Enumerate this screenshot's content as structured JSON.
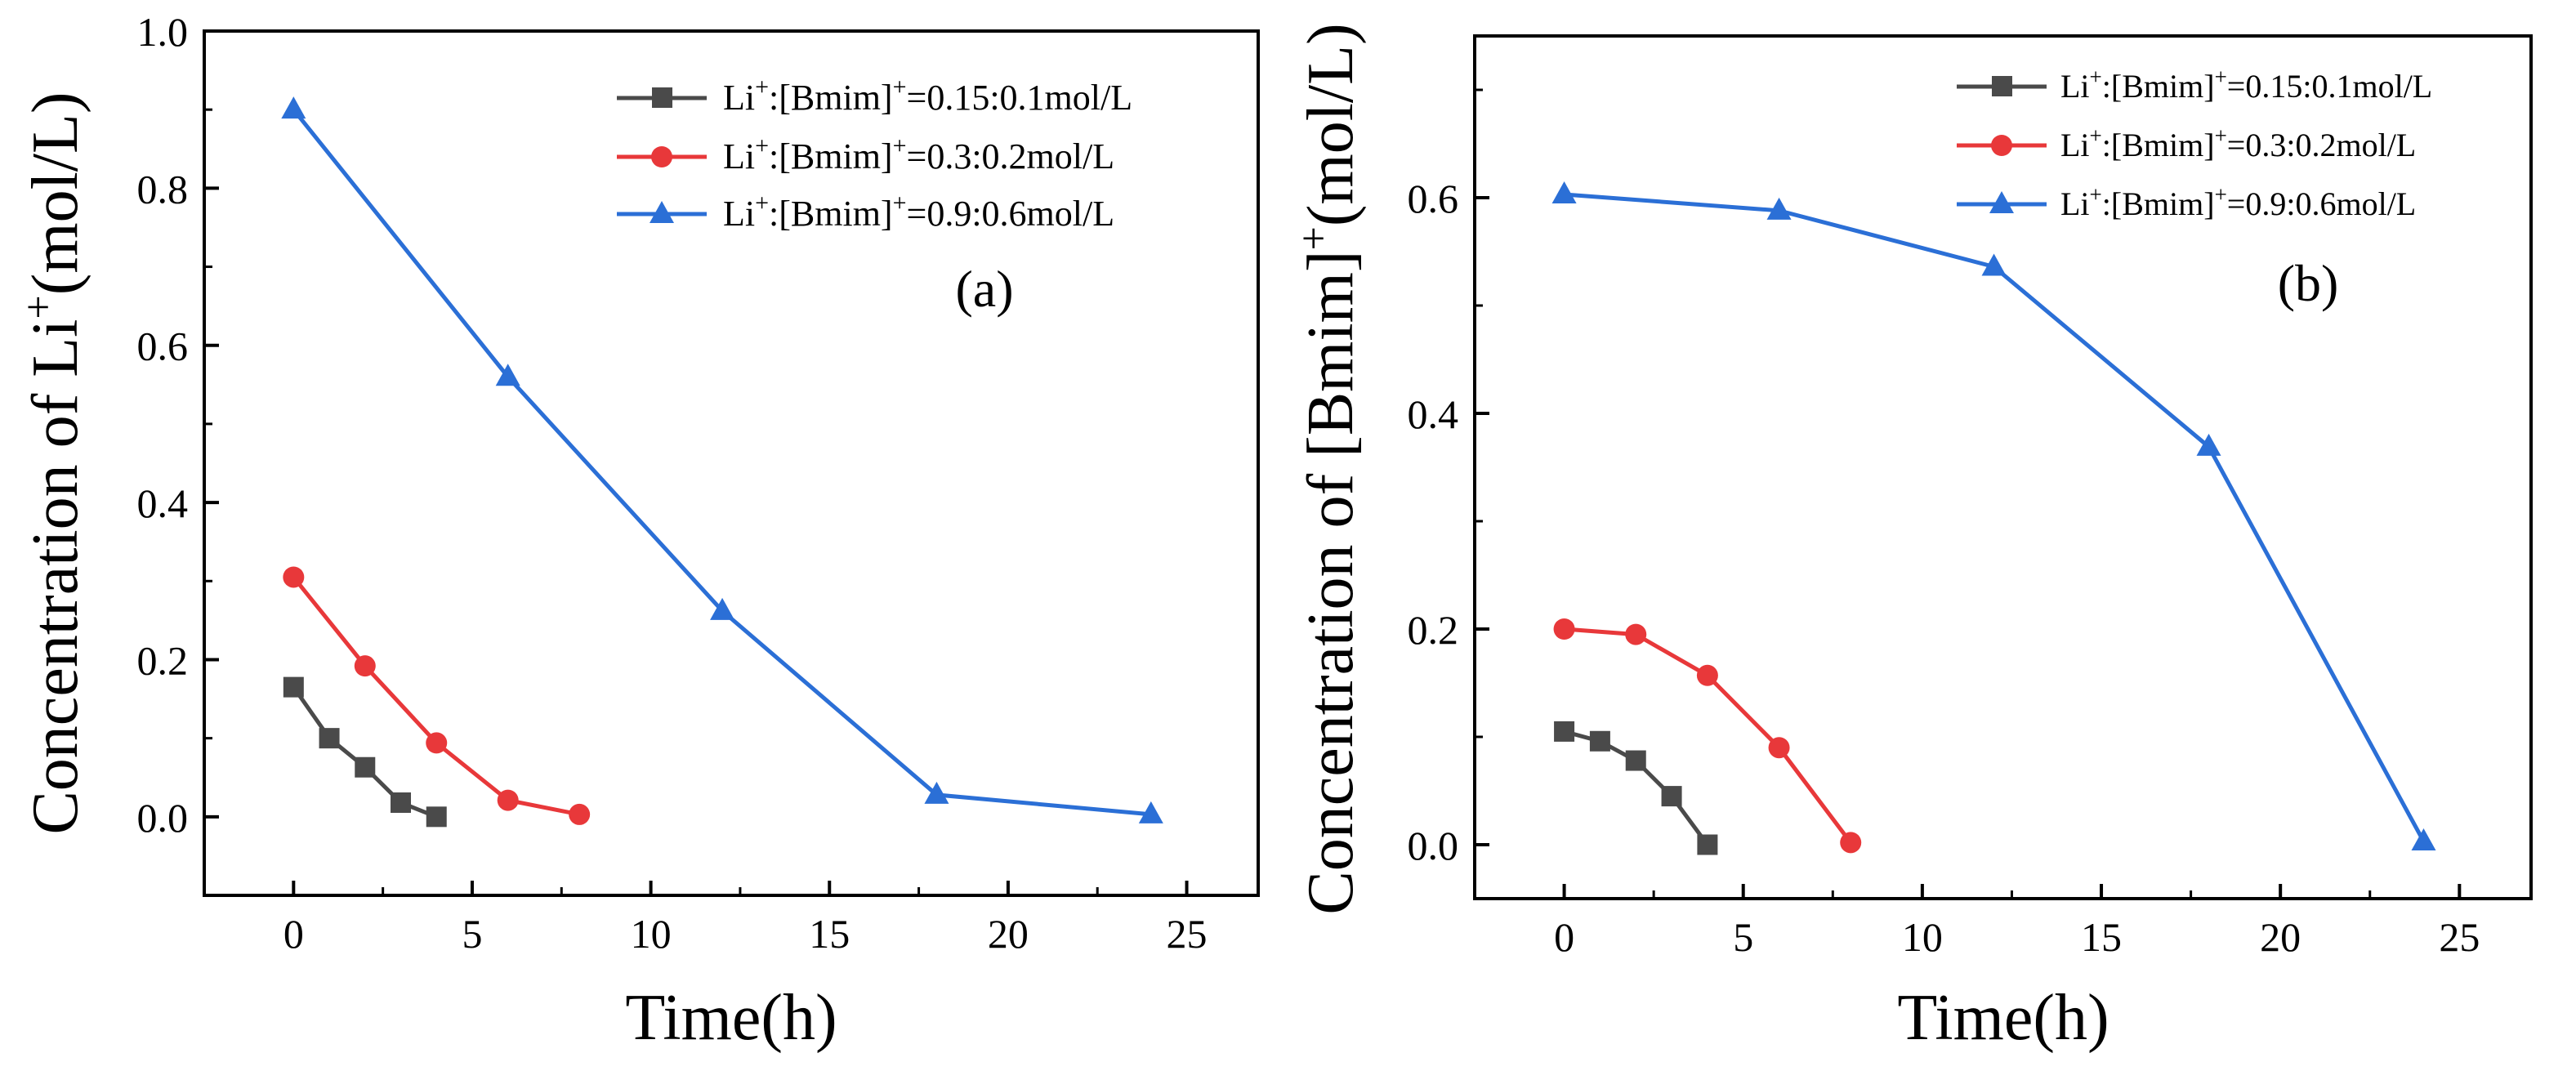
{
  "colors": {
    "series1": "#4a4a4a",
    "series2": "#e8383a",
    "series3": "#2b6fd6",
    "axis": "#000000"
  },
  "chart_data": [
    {
      "id": "a",
      "type": "line",
      "panel_label": "(a)",
      "xlabel": "Time(h)",
      "ylabel": "Concentration of Li+(mol/L)",
      "ylabel_parts": {
        "prefix": "Concentration of Li",
        "sup": "+",
        "suffix": "(mol/L)"
      },
      "xlim": [
        -2.5,
        27
      ],
      "ylim": [
        -0.1,
        1.0
      ],
      "xticks": [
        0,
        5,
        10,
        15,
        20,
        25
      ],
      "xtick_labels": [
        "0",
        "5",
        "10",
        "15",
        "20",
        "25"
      ],
      "yticks": [
        0.0,
        0.2,
        0.4,
        0.6,
        0.8,
        1.0
      ],
      "ytick_labels": [
        "0.0",
        "0.2",
        "0.4",
        "0.6",
        "0.8",
        "1.0"
      ],
      "legend_position": "top-right",
      "series": [
        {
          "name": "Li+:[Bmim]+=0.15:0.1mol/L",
          "legend": {
            "a": "Li",
            "b": "+",
            "c": ":[Bmim]",
            "d": "+",
            "e": "=0.15:0.1mol/L"
          },
          "marker": "square",
          "x": [
            0,
            1,
            2,
            3,
            4
          ],
          "y": [
            0.165,
            0.1,
            0.063,
            0.018,
            0.0
          ]
        },
        {
          "name": "Li+:[Bmim]+=0.3:0.2mol/L",
          "legend": {
            "a": "Li",
            "b": "+",
            "c": ":[Bmim]",
            "d": "+",
            "e": "=0.3:0.2mol/L"
          },
          "marker": "circle",
          "x": [
            0,
            2,
            4,
            6,
            8
          ],
          "y": [
            0.305,
            0.192,
            0.094,
            0.021,
            0.003
          ]
        },
        {
          "name": "Li+:[Bmim]+=0.9:0.6mol/L",
          "legend": {
            "a": "Li",
            "b": "+",
            "c": ":[Bmim]",
            "d": "+",
            "e": "=0.9:0.6mol/L"
          },
          "marker": "triangle",
          "x": [
            0,
            6,
            12,
            18,
            24
          ],
          "y": [
            0.9,
            0.56,
            0.262,
            0.028,
            0.003
          ]
        }
      ]
    },
    {
      "id": "b",
      "type": "line",
      "panel_label": "(b)",
      "xlabel": "Time(h)",
      "ylabel": "Concentration of [Bmim]+(mol/L)",
      "ylabel_parts": {
        "prefix": "Concentration of [Bmim]",
        "sup": "+",
        "suffix": "(mol/L)"
      },
      "xlim": [
        -2.5,
        27
      ],
      "ylim": [
        -0.05,
        0.75
      ],
      "xticks": [
        0,
        5,
        10,
        15,
        20,
        25
      ],
      "xtick_labels": [
        "0",
        "5",
        "10",
        "15",
        "20",
        "25"
      ],
      "yticks": [
        0.0,
        0.2,
        0.4,
        0.6
      ],
      "ytick_labels": [
        "0.0",
        "0.2",
        "0.4",
        "0.6"
      ],
      "legend_position": "top-right",
      "series": [
        {
          "name": "Li+:[Bmim]+=0.15:0.1mol/L",
          "legend": {
            "a": "Li",
            "b": "+",
            "c": ":[Bmim]",
            "d": "+",
            "e": "=0.15:0.1mol/L"
          },
          "marker": "square",
          "x": [
            0,
            1,
            2,
            3,
            4
          ],
          "y": [
            0.105,
            0.096,
            0.078,
            0.045,
            0.0
          ]
        },
        {
          "name": "Li+:[Bmim]+=0.3:0.2mol/L",
          "legend": {
            "a": "Li",
            "b": "+",
            "c": ":[Bmim]",
            "d": "+",
            "e": "=0.3:0.2mol/L"
          },
          "marker": "circle",
          "x": [
            0,
            2,
            4,
            6,
            8
          ],
          "y": [
            0.2,
            0.195,
            0.157,
            0.09,
            0.002
          ]
        },
        {
          "name": "Li+:[Bmim]+=0.9:0.6mol/L",
          "legend": {
            "a": "Li",
            "b": "+",
            "c": ":[Bmim]",
            "d": "+",
            "e": "=0.9:0.6mol/L"
          },
          "marker": "triangle",
          "x": [
            0,
            6,
            12,
            18,
            24
          ],
          "y": [
            0.603,
            0.588,
            0.536,
            0.369,
            0.003
          ]
        }
      ]
    }
  ]
}
